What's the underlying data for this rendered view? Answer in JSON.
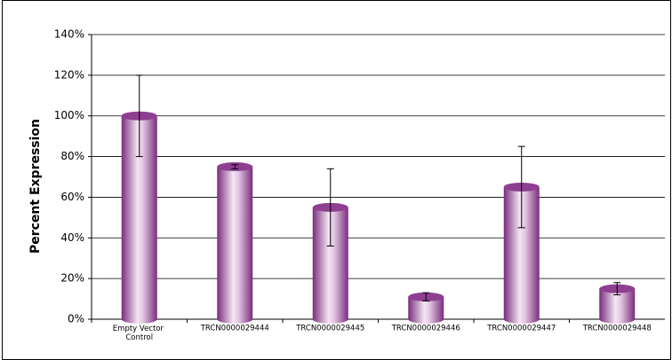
{
  "chart_data": {
    "type": "bar",
    "y_label": "Percent Expression",
    "categories": [
      "Empty Vector Control",
      "TRCN0000029444",
      "TRCN0000029445",
      "TRCN0000029446",
      "TRCN0000029447",
      "TRCN0000029448"
    ],
    "values": [
      100,
      75,
      55,
      11,
      65,
      15
    ],
    "errors": [
      20,
      1,
      19,
      2,
      20,
      3
    ],
    "color": "#8e3f91",
    "ylim": [
      0,
      140
    ],
    "yticks": [
      {
        "value": 0,
        "label": "0%"
      },
      {
        "value": 20,
        "label": "20%"
      },
      {
        "value": 40,
        "label": "40%"
      },
      {
        "value": 60,
        "label": "60%"
      },
      {
        "value": 80,
        "label": "80%"
      },
      {
        "value": 100,
        "label": "100%"
      },
      {
        "value": 120,
        "label": "120%"
      },
      {
        "value": 140,
        "label": "140%"
      }
    ],
    "grid": true
  }
}
